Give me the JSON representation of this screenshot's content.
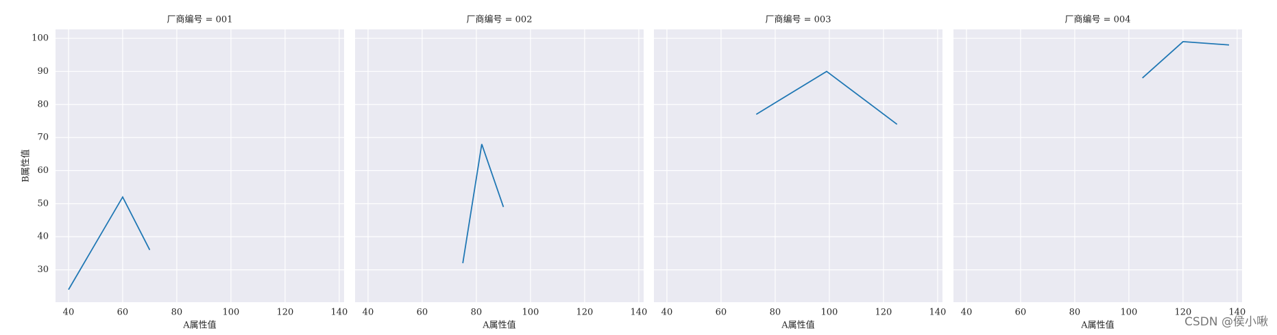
{
  "chart_data": [
    {
      "type": "line",
      "title": "厂商编号 = 001",
      "xlabel": "A属性值",
      "ylabel": "B属性值",
      "x": [
        40,
        60,
        70
      ],
      "values": [
        24,
        52,
        36
      ],
      "color": "#1f77b4",
      "xlim": [
        35.2,
        141.8
      ],
      "ylim": [
        20.2,
        102.7
      ],
      "xticks": [
        40,
        60,
        80,
        100,
        120,
        140
      ],
      "yticks": [
        30,
        40,
        50,
        60,
        70,
        80,
        90,
        100
      ],
      "grid": true
    },
    {
      "type": "line",
      "title": "厂商编号 = 002",
      "xlabel": "A属性值",
      "x": [
        75,
        82,
        90
      ],
      "values": [
        32,
        68,
        49
      ],
      "color": "#1f77b4",
      "xlim": [
        35.2,
        141.8
      ],
      "ylim": [
        20.2,
        102.7
      ],
      "xticks": [
        40,
        60,
        80,
        100,
        120,
        140
      ],
      "yticks": [
        30,
        40,
        50,
        60,
        70,
        80,
        90,
        100
      ],
      "grid": true
    },
    {
      "type": "line",
      "title": "厂商编号 = 003",
      "xlabel": "A属性值",
      "x": [
        73,
        99,
        125
      ],
      "values": [
        77,
        90,
        74
      ],
      "color": "#1f77b4",
      "xlim": [
        35.2,
        141.8
      ],
      "ylim": [
        20.2,
        102.7
      ],
      "xticks": [
        40,
        60,
        80,
        100,
        120,
        140
      ],
      "yticks": [
        30,
        40,
        50,
        60,
        70,
        80,
        90,
        100
      ],
      "grid": true
    },
    {
      "type": "line",
      "title": "厂商编号 = 004",
      "xlabel": "A属性值",
      "x": [
        105,
        120,
        137
      ],
      "values": [
        88,
        99,
        98
      ],
      "color": "#1f77b4",
      "xlim": [
        35.2,
        141.8
      ],
      "ylim": [
        20.2,
        102.7
      ],
      "xticks": [
        40,
        60,
        80,
        100,
        120,
        140
      ],
      "yticks": [
        30,
        40,
        50,
        60,
        70,
        80,
        90,
        100
      ],
      "grid": true
    }
  ],
  "watermark": "CSDN @侯小啾"
}
